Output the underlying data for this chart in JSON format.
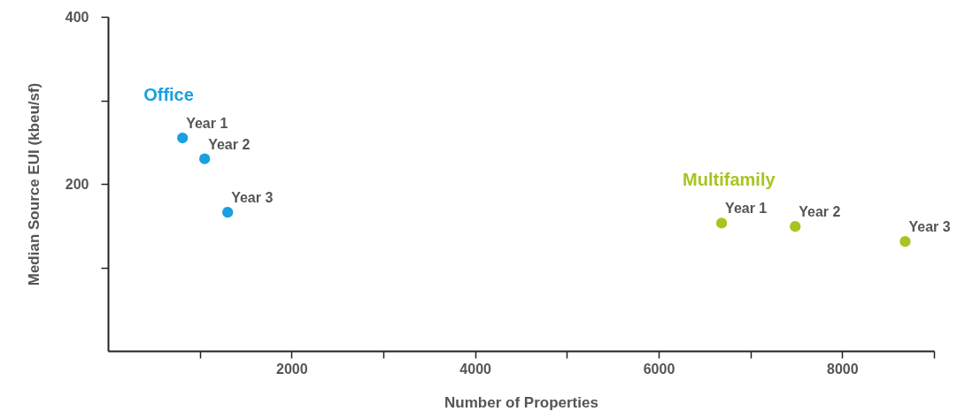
{
  "chart_data": {
    "type": "scatter",
    "xlabel": "Number of Properties",
    "ylabel": "Median Source EUI (kbeu/sf)",
    "xlim": [
      0,
      9000
    ],
    "ylim": [
      0,
      400
    ],
    "xticks": [
      {
        "value": 1000,
        "label": null
      },
      2000,
      {
        "value": 3000,
        "label": null
      },
      4000,
      {
        "value": 5000,
        "label": null
      },
      6000,
      {
        "value": 7000,
        "label": null
      },
      8000,
      {
        "value": 9000,
        "label": null
      }
    ],
    "yticks": [
      {
        "value": 100,
        "label": null
      },
      200,
      {
        "value": 300,
        "label": null
      },
      400
    ],
    "grid": false,
    "legend": false,
    "marker": "circle",
    "series": [
      {
        "name": "Office",
        "color": "#1a9fe0",
        "x": [
          812,
          1053,
          1304
        ],
        "values": [
          255,
          230,
          166
        ]
      },
      {
        "name": "Multifamily",
        "color": "#a6c520",
        "x": [
          6686,
          7488,
          8686
        ],
        "values": [
          153,
          149,
          131
        ]
      }
    ],
    "annotations": [
      {
        "text": "Year 1",
        "x": 812,
        "y": 255
      },
      {
        "text": "Year 2",
        "x": 1053,
        "y": 230
      },
      {
        "text": "Year 3",
        "x": 1304,
        "y": 166
      },
      {
        "text": "Year 1",
        "x": 6686,
        "y": 153
      },
      {
        "text": "Year 2",
        "x": 7488,
        "y": 149
      },
      {
        "text": "Year 3",
        "x": 8686,
        "y": 131
      }
    ]
  }
}
